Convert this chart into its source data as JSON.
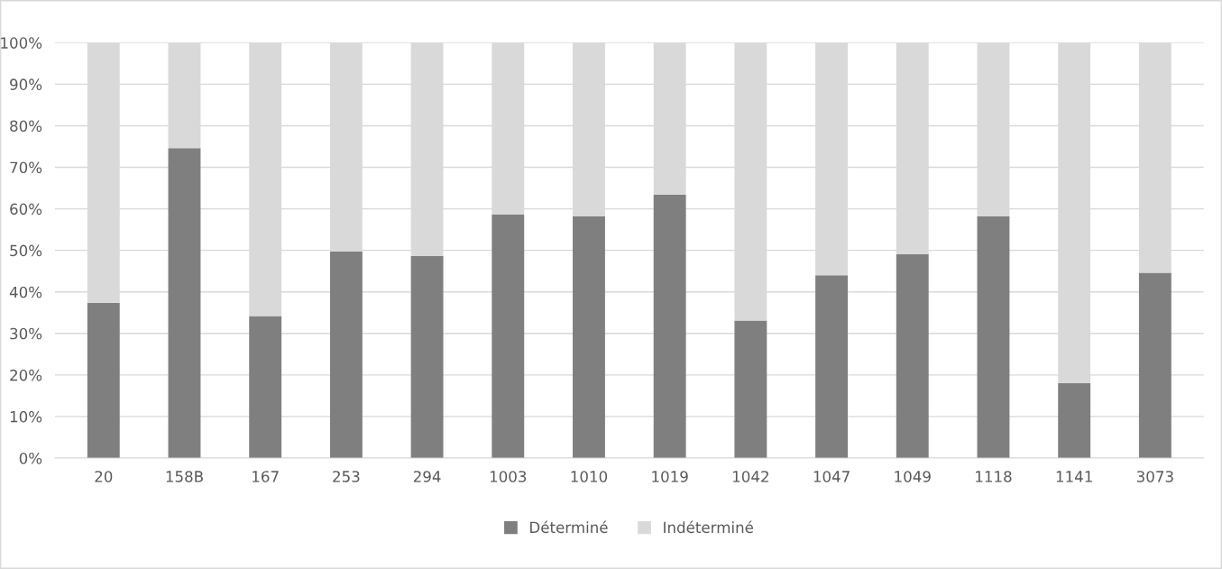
{
  "chart_data": {
    "type": "bar",
    "stacked": true,
    "categories": [
      "20",
      "158B",
      "167",
      "253",
      "294",
      "1003",
      "1010",
      "1019",
      "1042",
      "1047",
      "1049",
      "1118",
      "1141",
      "3073"
    ],
    "series": [
      {
        "name": "Déterminé",
        "color": "#7f7f7f",
        "values": [
          37.4,
          74.6,
          34.2,
          49.7,
          48.6,
          58.6,
          58.2,
          63.4,
          33.1,
          44.0,
          49.1,
          58.2,
          18.0,
          44.6
        ]
      },
      {
        "name": "Indéterminé",
        "color": "#d9d9d9",
        "values": [
          62.6,
          25.4,
          65.8,
          50.3,
          51.4,
          41.4,
          41.8,
          36.6,
          66.9,
          56.0,
          50.9,
          41.8,
          82.0,
          55.4
        ]
      }
    ],
    "ylim": [
      0,
      100
    ],
    "yticks": [
      {
        "value": 0,
        "label": "0%"
      },
      {
        "value": 10,
        "label": "10%"
      },
      {
        "value": 20,
        "label": "20%"
      },
      {
        "value": 30,
        "label": "30%"
      },
      {
        "value": 40,
        "label": "40%"
      },
      {
        "value": 50,
        "label": "50%"
      },
      {
        "value": 60,
        "label": "60%"
      },
      {
        "value": 70,
        "label": "70%"
      },
      {
        "value": 80,
        "label": "80%"
      },
      {
        "value": 90,
        "label": "90%"
      },
      {
        "value": 100,
        "label": "100%"
      }
    ],
    "grid": "y",
    "legend": "bottom"
  }
}
